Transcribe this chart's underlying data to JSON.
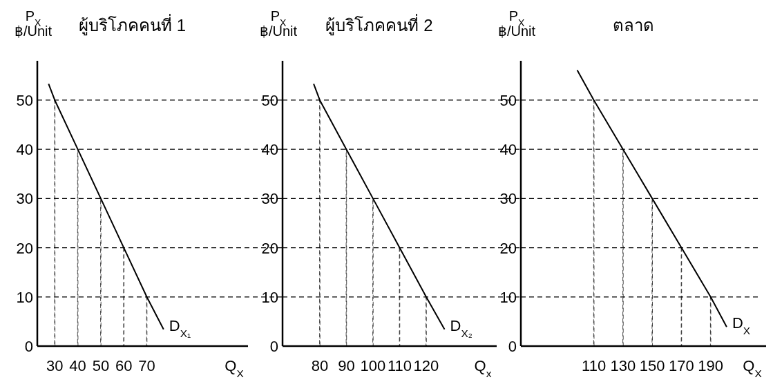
{
  "chart_data": [
    {
      "type": "line",
      "title": "ผู้บริโภคคนที่ 1",
      "xlabel": "Q$_{X}$",
      "ylabel": "P$_{X}$\n฿/Unit",
      "xlim": [
        22.4,
        114
      ],
      "ylim": [
        0,
        58
      ],
      "xticks": [
        30,
        40,
        50,
        60,
        70
      ],
      "yticks": [
        0,
        10,
        20,
        30,
        40,
        50
      ],
      "grid": "y",
      "series": [
        {
          "name": "D$_{X₁}$",
          "type": "line",
          "line_style": "solid",
          "color": "#000000",
          "x": [
            27.3,
            30,
            40,
            50,
            60,
            70,
            77.3
          ],
          "values": [
            53.3,
            50,
            40,
            30,
            20,
            10,
            3.4
          ]
        },
        {
          "type": "bar",
          "line_style": "dashed",
          "color": "#000000",
          "x": [
            30,
            40,
            50,
            60,
            70
          ],
          "values": [
            50,
            40,
            30,
            20,
            10
          ]
        }
      ]
    },
    {
      "type": "line",
      "title": "ผู้บริโภคคนที่ 2",
      "xlabel": "Q$_{x}$",
      "ylabel": "P$_{X}$\n฿/Unit",
      "xlim": [
        66,
        146.5
      ],
      "ylim": [
        0,
        58
      ],
      "xticks": [
        80,
        90,
        100,
        110,
        120
      ],
      "yticks": [
        0,
        10,
        20,
        30,
        40,
        50
      ],
      "grid": "y",
      "series": [
        {
          "name": "D$_{X₂}$",
          "type": "line",
          "line_style": "solid",
          "color": "#000000",
          "x": [
            77.7,
            80,
            90,
            100,
            110,
            120,
            126.9
          ],
          "values": [
            53.3,
            50,
            40,
            30,
            20,
            10,
            3.4
          ]
        },
        {
          "type": "bar",
          "line_style": "dashed",
          "color": "#000000",
          "x": [
            80,
            90,
            100,
            110,
            120
          ],
          "values": [
            50,
            40,
            30,
            20,
            10
          ]
        }
      ]
    },
    {
      "type": "line",
      "title": "ตลาด",
      "xlabel": "Q$_{X}$",
      "ylabel": "P$_{X}$\n฿/Unit",
      "xlim": [
        60,
        228
      ],
      "ylim": [
        0,
        58
      ],
      "xticks": [
        110,
        130,
        150,
        170,
        190
      ],
      "yticks": [
        0,
        10,
        20,
        30,
        40,
        50
      ],
      "grid": "y",
      "series": [
        {
          "name": "D$_{X}$",
          "type": "line",
          "line_style": "solid",
          "color": "#000000",
          "x": [
            98.6,
            110,
            130,
            150,
            170,
            190,
            201
          ],
          "values": [
            56.1,
            50,
            40,
            30,
            20,
            10,
            3.9
          ]
        },
        {
          "type": "bar",
          "line_style": "dashed",
          "color": "#000000",
          "x": [
            110,
            130,
            150,
            170,
            190
          ],
          "values": [
            50,
            40,
            30,
            20,
            10
          ]
        }
      ]
    }
  ]
}
